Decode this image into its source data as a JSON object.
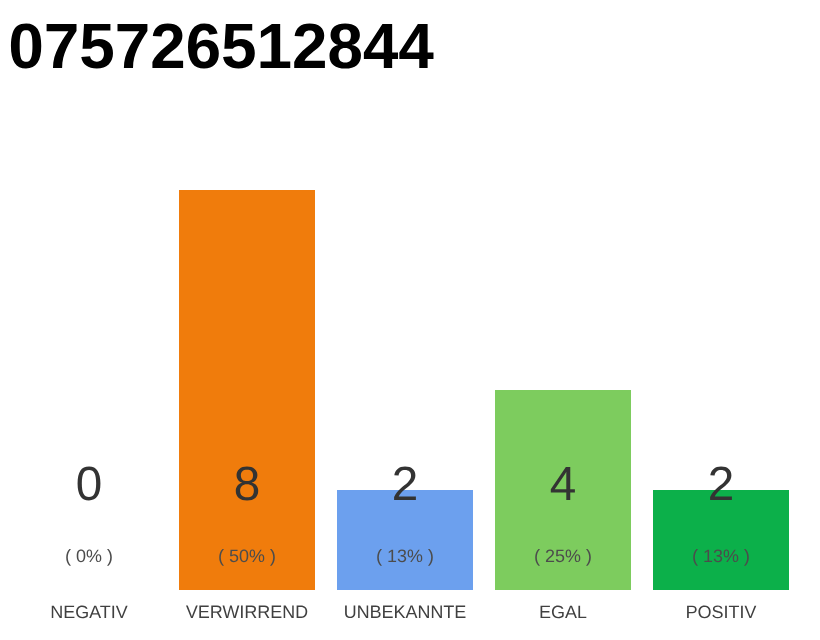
{
  "chart_data": {
    "type": "bar",
    "title": "075726512844",
    "categories": [
      "NEGATIV",
      "VERWIRREND",
      "UNBEKANNTE",
      "EGAL",
      "POSITIV"
    ],
    "values": [
      0,
      8,
      2,
      4,
      2
    ],
    "colors": [
      "#999999",
      "#f07c0c",
      "#6ca0ee",
      "#7dcc5e",
      "#0cb04a"
    ],
    "data_labels": true,
    "annotations": [
      "( 0% )",
      "( 50% )",
      "( 13% )",
      "( 25% )",
      "( 13% )"
    ]
  }
}
